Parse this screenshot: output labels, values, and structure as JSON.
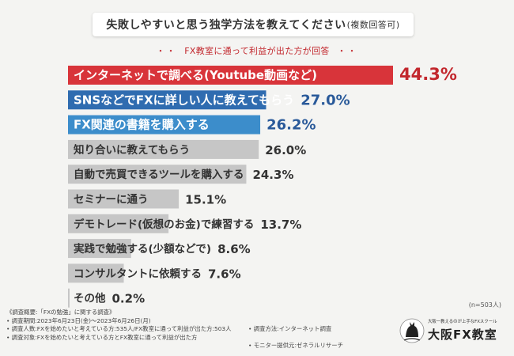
{
  "title": "失敗しやすいと思う独学方法を教えてください",
  "title_note": "(複数回答可)",
  "subtitle": "FX教室に通って利益が出た方が回答",
  "subtitle_dots": "・・",
  "sample_size": "(n=503人)",
  "chart_data": {
    "type": "bar",
    "orientation": "horizontal",
    "unit": "%",
    "categories": [
      "インターネットで調べる(Youtube動画など)",
      "SNSなどでFXに詳しい人に教えてもらう",
      "FX関連の書籍を購入する",
      "知り合いに教えてもらう",
      "自動で売買できるツールを購入する",
      "セミナーに通う",
      "デモトレード(仮想のお金)で練習する",
      "実践で勉強する(少額などで)",
      "コンサルタントに依頼する",
      "その他"
    ],
    "values": [
      44.3,
      27.0,
      26.2,
      26.0,
      24.3,
      15.1,
      13.7,
      8.6,
      7.6,
      0.2
    ],
    "value_labels": [
      "44.3%",
      "27.0%",
      "26.2%",
      "26.0%",
      "24.3%",
      "15.1%",
      "13.7%",
      "8.6%",
      "7.6%",
      "0.2%"
    ],
    "bar_colors": [
      "#d8343a",
      "#2f6cb0",
      "#3c8dcb",
      "#c6c6c6",
      "#c6c6c6",
      "#c6c6c6",
      "#c6c6c6",
      "#c6c6c6",
      "#c6c6c6",
      "#c6c6c6"
    ],
    "label_colors": [
      "#ffffff",
      "#ffffff",
      "#ffffff",
      "#333333",
      "#333333",
      "#333333",
      "#333333",
      "#333333",
      "#333333",
      "#333333"
    ],
    "value_colors": [
      "#c2272d",
      "#2a5a9a",
      "#2a5a9a",
      "#333333",
      "#333333",
      "#333333",
      "#333333",
      "#333333",
      "#333333",
      "#333333"
    ]
  },
  "footer": {
    "heading": "《調査概要:「FXの勉強」に関する調査》",
    "left_lines": [
      "• 調査期間:2023年6月23日(金)〜2023年6月26日(月)",
      "• 調査人数:FXを始めたいと考えている方:535人/FX教室に通って利益が出た方:503人",
      "• 調査対象:FXを始めたいと考えている方とFX教室に通って利益が出た方"
    ],
    "right_lines": [
      "• 調査方法:インターネット調査",
      "• モニター提供元:ゼネラルリサーチ"
    ]
  },
  "logo": {
    "tagline": "大阪一教えるのが上手なFXスクール",
    "brand": "大阪FX教室"
  }
}
